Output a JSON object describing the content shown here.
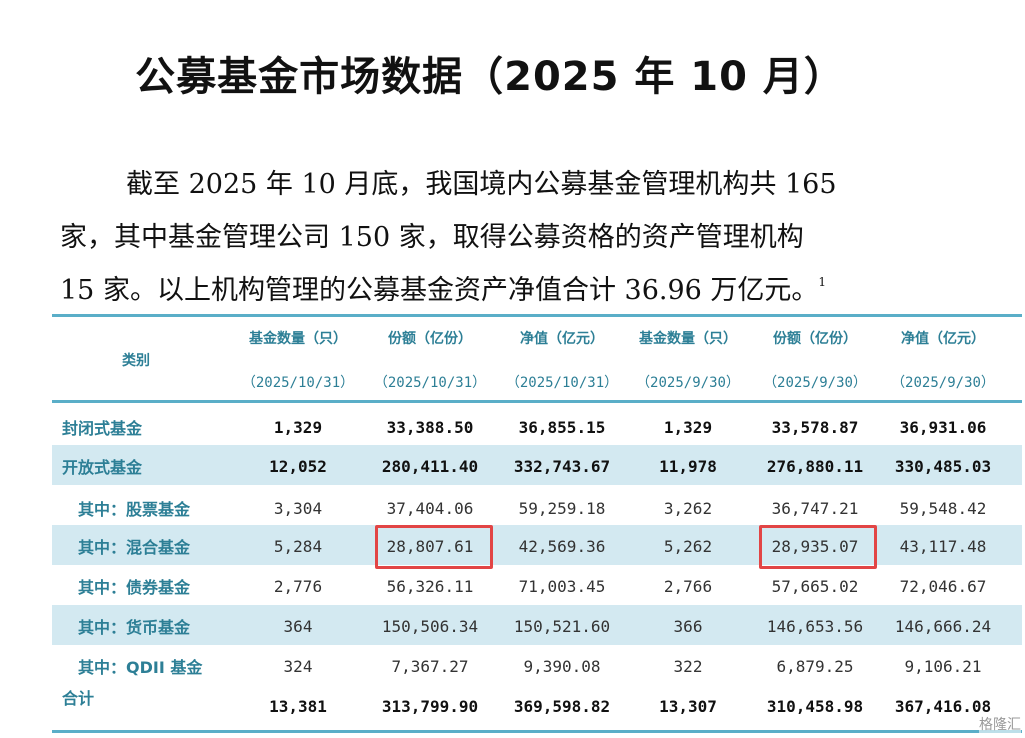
{
  "title": "公募基金市场数据（2025 年 10 月）",
  "paragraph": {
    "lines": [
      "截至 2025 年 10 月底，我国境内公募基金管理机构共 165",
      "家，其中基金管理公司 150 家，取得公募资格的资产管理机构",
      "15 家。以上机构管理的公募基金资产净值合计 36.96 万亿元。"
    ],
    "footnote": "1"
  },
  "table": {
    "category_header": "类别",
    "columns": [
      {
        "label": "基金数量（只）",
        "date": "（2025/10/31）"
      },
      {
        "label": "份额（亿份）",
        "date": "（2025/10/31）"
      },
      {
        "label": "净值（亿元）",
        "date": "（2025/10/31）"
      },
      {
        "label": "基金数量（只）",
        "date": "（2025/9/30）"
      },
      {
        "label": "份额（亿份）",
        "date": "（2025/9/30）"
      },
      {
        "label": "净值（亿元）",
        "date": "（2025/9/30）"
      }
    ],
    "rows": [
      {
        "label": "封闭式基金",
        "values": [
          "1,329",
          "33,388.50",
          "36,855.15",
          "1,329",
          "33,578.87",
          "36,931.06"
        ]
      },
      {
        "label": "开放式基金",
        "values": [
          "12,052",
          "280,411.40",
          "332,743.67",
          "11,978",
          "276,880.11",
          "330,485.03"
        ]
      },
      {
        "label": "其中：股票基金",
        "values": [
          "3,304",
          "37,404.06",
          "59,259.18",
          "3,262",
          "36,747.21",
          "59,548.42"
        ]
      },
      {
        "label": "其中：混合基金",
        "values": [
          "5,284",
          "28,807.61",
          "42,569.36",
          "5,262",
          "28,935.07",
          "43,117.48"
        ]
      },
      {
        "label": "其中：债券基金",
        "values": [
          "2,776",
          "56,326.11",
          "71,003.45",
          "2,766",
          "57,665.02",
          "72,046.67"
        ]
      },
      {
        "label": "其中：货币基金",
        "values": [
          "364",
          "150,506.34",
          "150,521.60",
          "366",
          "146,653.56",
          "146,666.24"
        ]
      },
      {
        "label": "其中：QDII 基金",
        "values": [
          "324",
          "7,367.27",
          "9,390.08",
          "322",
          "6,879.25",
          "9,106.21"
        ]
      },
      {
        "label": "合计",
        "values": [
          "13,381",
          "313,799.90",
          "369,598.82",
          "13,307",
          "310,458.98",
          "367,416.08"
        ]
      }
    ]
  },
  "watermark": "格隆汇",
  "colors": {
    "header_text": "#2d7f96",
    "rule": "#5aaec8",
    "shade": "#d3e9f1",
    "highlight": "#e24545"
  }
}
